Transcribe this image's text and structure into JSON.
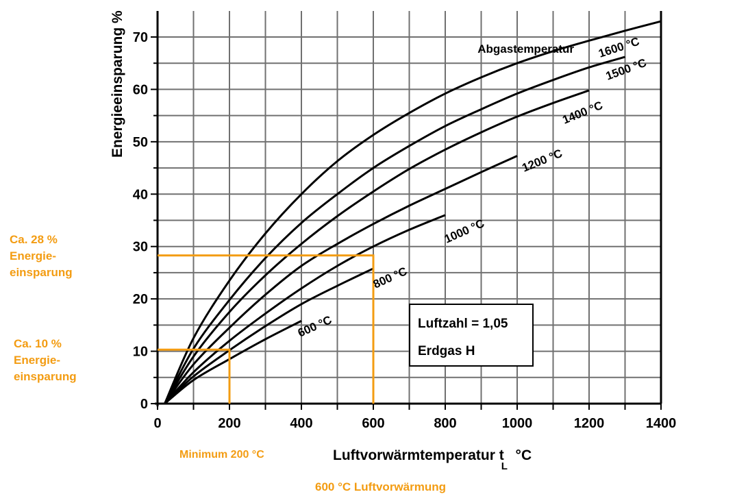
{
  "chart_data": {
    "type": "line",
    "title": "",
    "xlabel": "Luftvorwärmtemperatur",
    "xlabel_symbol": "t",
    "xlabel_subscript": "L",
    "xlabel_unit": "°C",
    "ylabel": "Energieeinsparung %",
    "xlim": [
      0,
      1400
    ],
    "ylim": [
      0,
      75
    ],
    "x_ticks": [
      0,
      200,
      400,
      600,
      800,
      1000,
      1200,
      1400
    ],
    "y_ticks": [
      0,
      10,
      20,
      30,
      40,
      50,
      60,
      70
    ],
    "grid": true,
    "grid_x_step": 100,
    "grid_y_step": 5,
    "legend_title": "Abgastemperatur",
    "series": [
      {
        "name": "600 °C",
        "x": [
          20,
          100,
          200,
          300,
          400
        ],
        "y": [
          0,
          4.5,
          8.5,
          12.3,
          15.8
        ]
      },
      {
        "name": "800 °C",
        "x": [
          20,
          100,
          200,
          300,
          400,
          500,
          600
        ],
        "y": [
          0,
          5.2,
          10.2,
          14.8,
          19,
          22.5,
          25.8
        ]
      },
      {
        "name": "1000 °C",
        "x": [
          20,
          100,
          200,
          300,
          400,
          500,
          600,
          700,
          800
        ],
        "y": [
          0,
          6,
          12,
          17.2,
          22,
          26.3,
          30,
          33.2,
          36
        ]
      },
      {
        "name": "1200 °C",
        "x": [
          20,
          100,
          200,
          300,
          400,
          500,
          600,
          700,
          800,
          900,
          1000
        ],
        "y": [
          0,
          7.5,
          14.5,
          20.8,
          26.3,
          30.5,
          34.3,
          37.8,
          41,
          44.2,
          47.3
        ]
      },
      {
        "name": "1400 °C",
        "x": [
          20,
          100,
          200,
          300,
          400,
          500,
          600,
          700,
          800,
          900,
          1000,
          1100,
          1200
        ],
        "y": [
          0,
          9,
          17.5,
          24.5,
          30.5,
          35.8,
          40.5,
          44.8,
          48.5,
          51.8,
          54.8,
          57.4,
          59.8
        ]
      },
      {
        "name": "1500 °C",
        "x": [
          20,
          100,
          200,
          300,
          400,
          500,
          600,
          700,
          800,
          900,
          1000,
          1100,
          1200,
          1300
        ],
        "y": [
          0,
          10.5,
          19.8,
          27.8,
          34.5,
          40,
          45,
          49.2,
          53,
          56.2,
          59.2,
          61.8,
          64.2,
          66.2
        ]
      },
      {
        "name": "1600 °C",
        "x": [
          20,
          100,
          200,
          300,
          400,
          500,
          600,
          700,
          800,
          900,
          1000,
          1100,
          1200,
          1300,
          1400
        ],
        "y": [
          0,
          12.5,
          23.5,
          32.5,
          40,
          46.3,
          51.3,
          55.5,
          59.2,
          62.3,
          65,
          67.3,
          69.3,
          71.2,
          73
        ]
      }
    ],
    "annotations": [
      {
        "type": "marker-lines",
        "x": 200,
        "y": 10.3,
        "color": "#f39c12"
      },
      {
        "type": "marker-lines",
        "x": 600,
        "y": 28.3,
        "color": "#f39c12"
      }
    ]
  },
  "labels": {
    "legend_title": "Abgastemperatur",
    "info_line1": "Luftzahl = 1,05",
    "info_line2": "Erdgas H",
    "ylabel": "Energieeinsparung %",
    "xlabel_main": "Luftvorwärmtemperatur   t",
    "xlabel_sub": "L",
    "xlabel_unit": "  °C"
  },
  "annotations": {
    "ann28_line1": "Ca. 28 %",
    "ann28_line2": "Energie-",
    "ann28_line3": "einsparung",
    "ann10_line1": "Ca. 10 %",
    "ann10_line2": "Energie-",
    "ann10_line3": "einsparung",
    "min200": "Minimum 200 °C",
    "pre600": "600 °C Luftvorwärmung"
  },
  "colors": {
    "accent": "#f39c12",
    "grid": "#707070",
    "curve": "#000000"
  }
}
